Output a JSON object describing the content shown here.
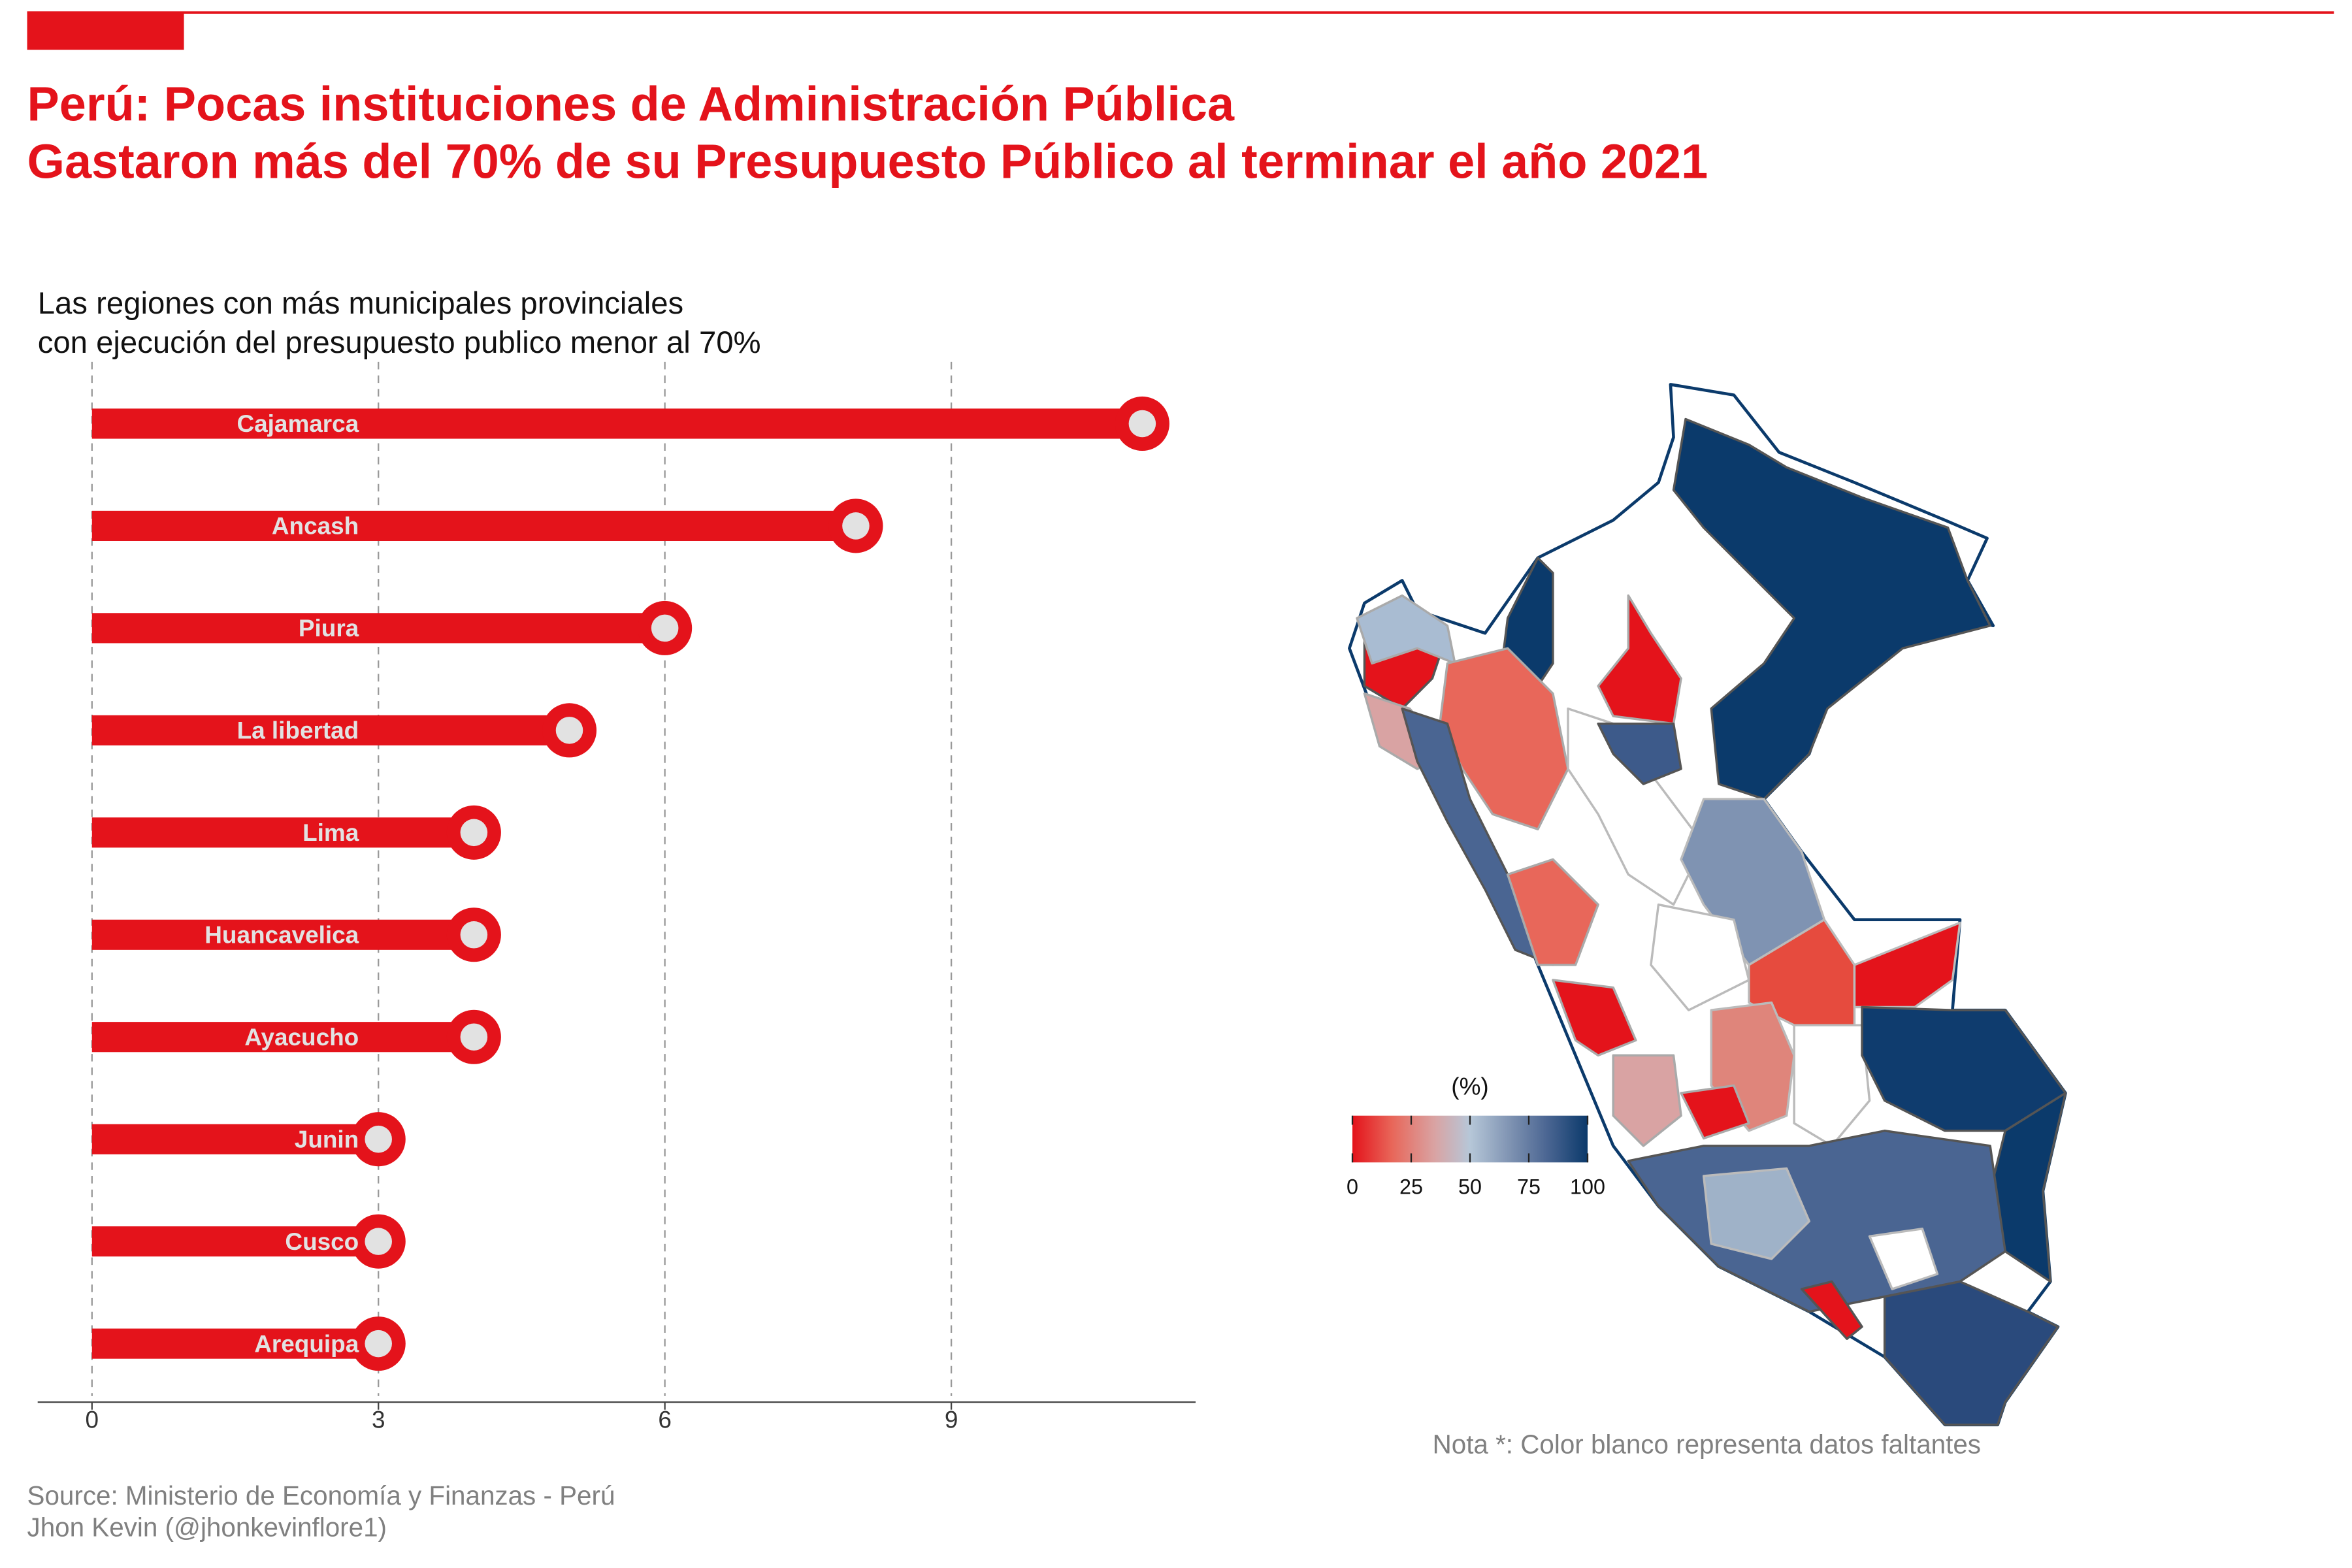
{
  "header": {
    "title_line1": "Perú: Pocas instituciones de Administración Pública",
    "title_line2": "Gastaron más del 70% de su Presupuesto Público al terminar el año 2021",
    "accent_color": "#e4131b"
  },
  "chart_data": [
    {
      "type": "bar",
      "style": "lollipop-horizontal",
      "subtitle_line1": "Las regiones con más municipales provinciales",
      "subtitle_line2": "con ejecución del presupuesto publico menor al 70%",
      "categories": [
        "Cajamarca",
        "Ancash",
        "Piura",
        "La libertad",
        "Lima",
        "Huancavelica",
        "Ayacucho",
        "Junin",
        "Cusco",
        "Arequipa"
      ],
      "values": [
        11,
        8,
        6,
        5,
        4,
        4,
        4,
        3,
        3,
        3
      ],
      "xticks": [
        "0",
        "3",
        "6",
        "9"
      ],
      "xlim": [
        0,
        11.5
      ],
      "grid": "vertical dashed",
      "bar_color": "#e4131b",
      "dot_fill": "#e2e2e2"
    },
    {
      "type": "heatmap",
      "style": "choropleth-map",
      "legend_title": "(%)",
      "legend_ticks": [
        "0",
        "25",
        "50",
        "75",
        "100"
      ],
      "scale_range": [
        0,
        100
      ],
      "scale_colors": [
        "#e4131b",
        "#e8675a",
        "#d9a3a3",
        "#b6c7d8",
        "#7f93b2",
        "#4a6592",
        "#0b3a6b"
      ],
      "missing_color": "#ffffff",
      "note": "Nota *: Color blanco representa datos faltantes"
    }
  ],
  "footer": {
    "source": "Source: Ministerio de Economía y Finanzas - Perú",
    "author": "Jhon Kevin (@jhonkevinflore1)"
  }
}
